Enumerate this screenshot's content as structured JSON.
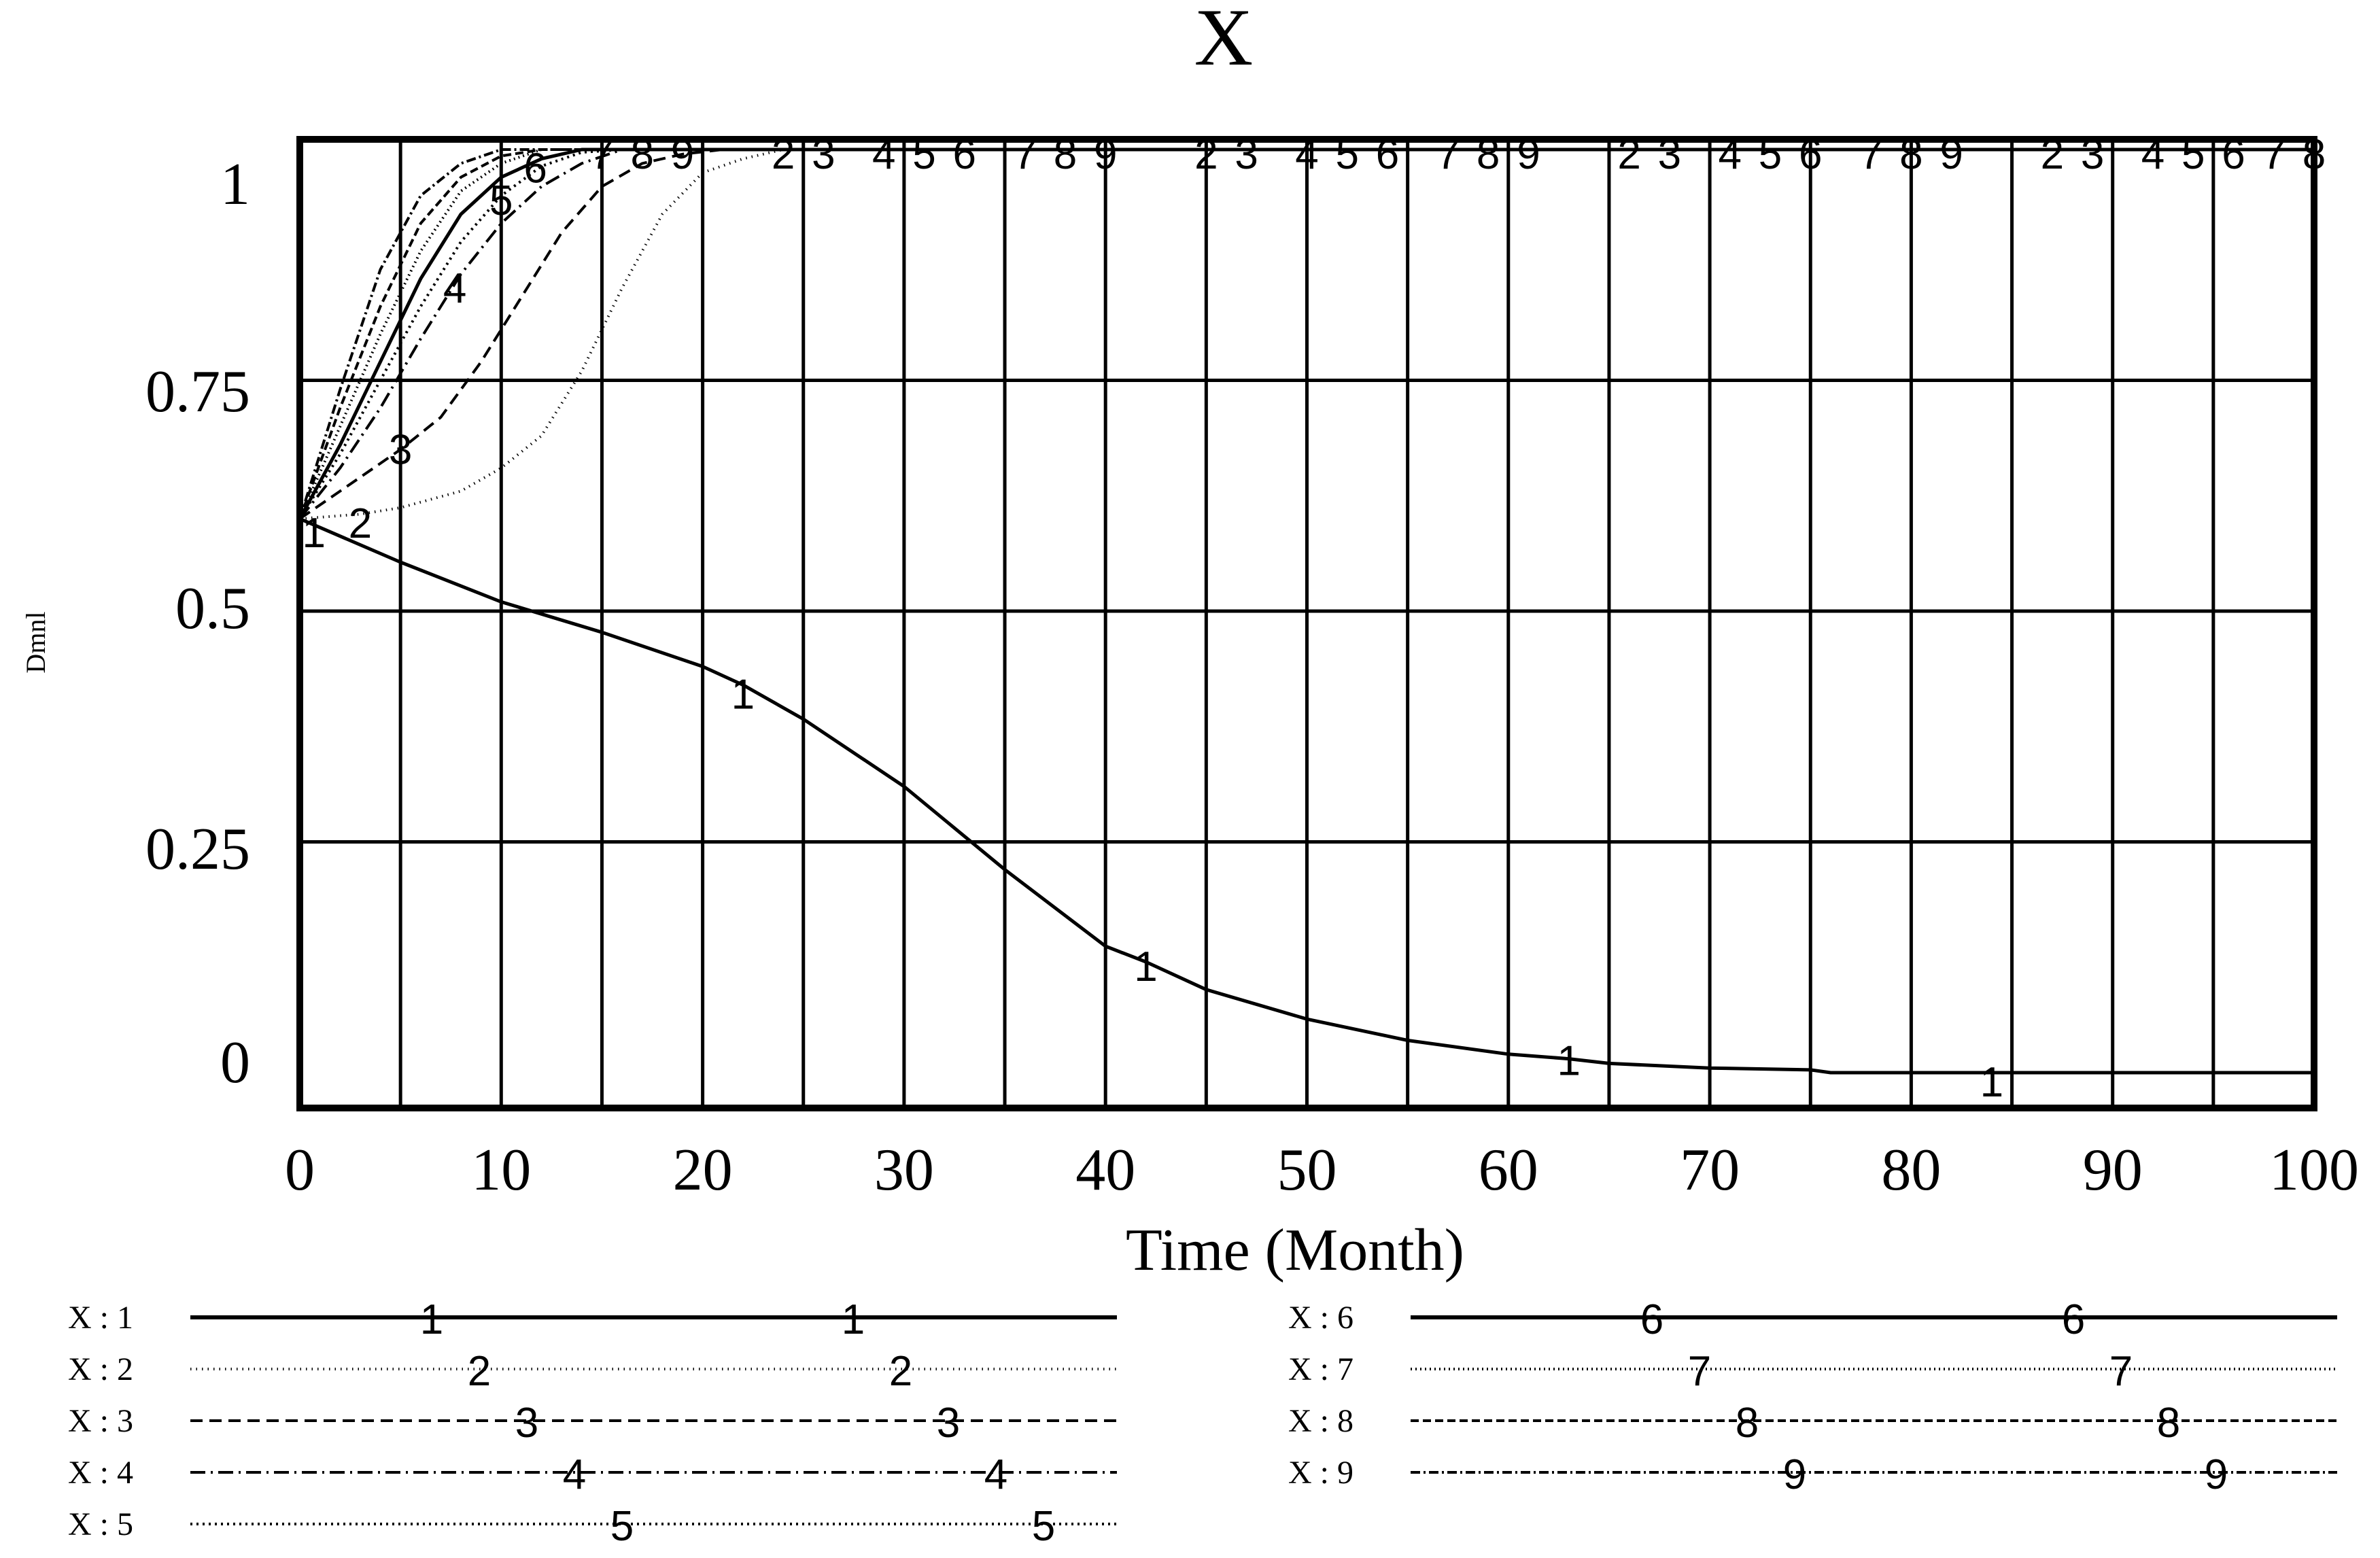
{
  "chart_data": {
    "type": "line",
    "title": "X",
    "xlabel": "Time (Month)",
    "ylabel": "Dmnl",
    "xlim": [
      0,
      100
    ],
    "ylim": [
      0,
      1
    ],
    "x_ticks": [
      "0",
      "10",
      "20",
      "30",
      "40",
      "50",
      "60",
      "70",
      "80",
      "90",
      "100"
    ],
    "y_ticks": [
      "0",
      "0.25",
      "0.5",
      "0.75",
      "1"
    ],
    "grid": true,
    "legend_position": "bottom",
    "series": [
      {
        "name": "X : 1",
        "marker": "1",
        "dash": "solid",
        "points": [
          [
            0,
            0.6
          ],
          [
            5,
            0.553
          ],
          [
            10,
            0.51
          ],
          [
            15,
            0.477
          ],
          [
            20,
            0.44
          ],
          [
            22,
            0.42
          ],
          [
            25,
            0.383
          ],
          [
            30,
            0.31
          ],
          [
            35,
            0.22
          ],
          [
            40,
            0.137
          ],
          [
            42,
            0.12
          ],
          [
            45,
            0.09
          ],
          [
            50,
            0.058
          ],
          [
            55,
            0.035
          ],
          [
            60,
            0.02
          ],
          [
            63,
            0.015
          ],
          [
            65,
            0.01
          ],
          [
            70,
            0.005
          ],
          [
            75,
            0.003
          ],
          [
            76,
            0.0
          ],
          [
            84,
            0.0
          ],
          [
            100,
            0.0
          ]
        ]
      },
      {
        "name": "X : 2",
        "marker": "2",
        "dash": "1.5,7",
        "points": [
          [
            0,
            0.6
          ],
          [
            3,
            0.605
          ],
          [
            5,
            0.612
          ],
          [
            8,
            0.63
          ],
          [
            10,
            0.655
          ],
          [
            12,
            0.69
          ],
          [
            14,
            0.76
          ],
          [
            16,
            0.85
          ],
          [
            18,
            0.93
          ],
          [
            20,
            0.975
          ],
          [
            22,
            0.99
          ],
          [
            24,
            1.0
          ],
          [
            100,
            1.0
          ]
        ]
      },
      {
        "name": "X : 3",
        "marker": "3",
        "dash": "18,10",
        "points": [
          [
            0,
            0.6
          ],
          [
            2,
            0.63
          ],
          [
            5,
            0.675
          ],
          [
            7,
            0.71
          ],
          [
            9,
            0.77
          ],
          [
            11,
            0.84
          ],
          [
            13,
            0.91
          ],
          [
            15,
            0.96
          ],
          [
            17,
            0.985
          ],
          [
            19,
            0.995
          ],
          [
            21,
            1.0
          ],
          [
            100,
            1.0
          ]
        ]
      },
      {
        "name": "X : 4",
        "marker": "4",
        "dash": "22,8,3,8",
        "points": [
          [
            0,
            0.6
          ],
          [
            2,
            0.655
          ],
          [
            4,
            0.72
          ],
          [
            6,
            0.795
          ],
          [
            8,
            0.865
          ],
          [
            10,
            0.92
          ],
          [
            12,
            0.96
          ],
          [
            14,
            0.985
          ],
          [
            16,
            1.0
          ],
          [
            100,
            1.0
          ]
        ]
      },
      {
        "name": "X : 5",
        "marker": "5",
        "dash": "3,6",
        "points": [
          [
            0,
            0.6
          ],
          [
            2,
            0.67
          ],
          [
            4,
            0.75
          ],
          [
            6,
            0.83
          ],
          [
            8,
            0.9
          ],
          [
            10,
            0.95
          ],
          [
            12,
            0.982
          ],
          [
            14,
            0.997
          ],
          [
            16,
            1.0
          ],
          [
            100,
            1.0
          ]
        ]
      },
      {
        "name": "X : 6",
        "marker": "6",
        "dash": "solid",
        "points": [
          [
            0,
            0.6
          ],
          [
            2,
            0.68
          ],
          [
            4,
            0.77
          ],
          [
            6,
            0.86
          ],
          [
            8,
            0.93
          ],
          [
            10,
            0.97
          ],
          [
            12,
            0.99
          ],
          [
            14,
            1.0
          ],
          [
            100,
            1.0
          ]
        ]
      },
      {
        "name": "X : 7",
        "marker": "7",
        "dash": "2,5",
        "points": [
          [
            0,
            0.6
          ],
          [
            2,
            0.7
          ],
          [
            4,
            0.8
          ],
          [
            6,
            0.89
          ],
          [
            8,
            0.955
          ],
          [
            10,
            0.985
          ],
          [
            12,
            1.0
          ],
          [
            100,
            1.0
          ]
        ]
      },
      {
        "name": "X : 8",
        "marker": "8",
        "dash": "12,6",
        "points": [
          [
            0,
            0.6
          ],
          [
            2,
            0.72
          ],
          [
            4,
            0.83
          ],
          [
            6,
            0.92
          ],
          [
            8,
            0.97
          ],
          [
            10,
            0.993
          ],
          [
            12,
            1.0
          ],
          [
            100,
            1.0
          ]
        ]
      },
      {
        "name": "X : 9",
        "marker": "9",
        "dash": "14,5,3,5",
        "points": [
          [
            0,
            0.6
          ],
          [
            2,
            0.74
          ],
          [
            4,
            0.87
          ],
          [
            6,
            0.95
          ],
          [
            8,
            0.985
          ],
          [
            10,
            1.0
          ],
          [
            100,
            1.0
          ]
        ]
      }
    ],
    "marker_labels": [
      {
        "text": "1",
        "x": 0.7,
        "y": 0.59
      },
      {
        "text": "1",
        "x": 22,
        "y": 0.415
      },
      {
        "text": "1",
        "x": 42,
        "y": 0.12
      },
      {
        "text": "1",
        "x": 63,
        "y": 0.018
      },
      {
        "text": "1",
        "x": 84,
        "y": -0.005
      },
      {
        "text": "2",
        "x": 3,
        "y": 0.6
      },
      {
        "text": "2",
        "x": 24,
        "y": 1.0
      },
      {
        "text": "2",
        "x": 45,
        "y": 1.0
      },
      {
        "text": "2",
        "x": 66,
        "y": 1.0
      },
      {
        "text": "2",
        "x": 87,
        "y": 1.0
      },
      {
        "text": "3",
        "x": 5,
        "y": 0.68
      },
      {
        "text": "3",
        "x": 26,
        "y": 1.0
      },
      {
        "text": "3",
        "x": 47,
        "y": 1.0
      },
      {
        "text": "3",
        "x": 68,
        "y": 1.0
      },
      {
        "text": "3",
        "x": 89,
        "y": 1.0
      },
      {
        "text": "4",
        "x": 7.7,
        "y": 0.855
      },
      {
        "text": "4",
        "x": 29,
        "y": 1.0
      },
      {
        "text": "4",
        "x": 50,
        "y": 1.0
      },
      {
        "text": "4",
        "x": 71,
        "y": 1.0
      },
      {
        "text": "4",
        "x": 92,
        "y": 1.0
      },
      {
        "text": "5",
        "x": 10,
        "y": 0.95
      },
      {
        "text": "5",
        "x": 31,
        "y": 1.0
      },
      {
        "text": "5",
        "x": 52,
        "y": 1.0
      },
      {
        "text": "5",
        "x": 73,
        "y": 1.0
      },
      {
        "text": "5",
        "x": 94,
        "y": 1.0
      },
      {
        "text": "6",
        "x": 11.7,
        "y": 0.985
      },
      {
        "text": "6",
        "x": 33,
        "y": 1.0
      },
      {
        "text": "6",
        "x": 54,
        "y": 1.0
      },
      {
        "text": "6",
        "x": 75,
        "y": 1.0
      },
      {
        "text": "6",
        "x": 96,
        "y": 1.0
      },
      {
        "text": "7",
        "x": 15,
        "y": 1.0
      },
      {
        "text": "7",
        "x": 36,
        "y": 1.0
      },
      {
        "text": "7",
        "x": 57,
        "y": 1.0
      },
      {
        "text": "7",
        "x": 78,
        "y": 1.0
      },
      {
        "text": "7",
        "x": 98,
        "y": 1.0
      },
      {
        "text": "8",
        "x": 17,
        "y": 1.0
      },
      {
        "text": "8",
        "x": 38,
        "y": 1.0
      },
      {
        "text": "8",
        "x": 59,
        "y": 1.0
      },
      {
        "text": "8",
        "x": 80,
        "y": 1.0
      },
      {
        "text": "8",
        "x": 100,
        "y": 1.0
      },
      {
        "text": "9",
        "x": 19,
        "y": 1.0
      },
      {
        "text": "9",
        "x": 40,
        "y": 1.0
      },
      {
        "text": "9",
        "x": 61,
        "y": 1.0
      },
      {
        "text": "9",
        "x": 82,
        "y": 1.0
      }
    ]
  }
}
